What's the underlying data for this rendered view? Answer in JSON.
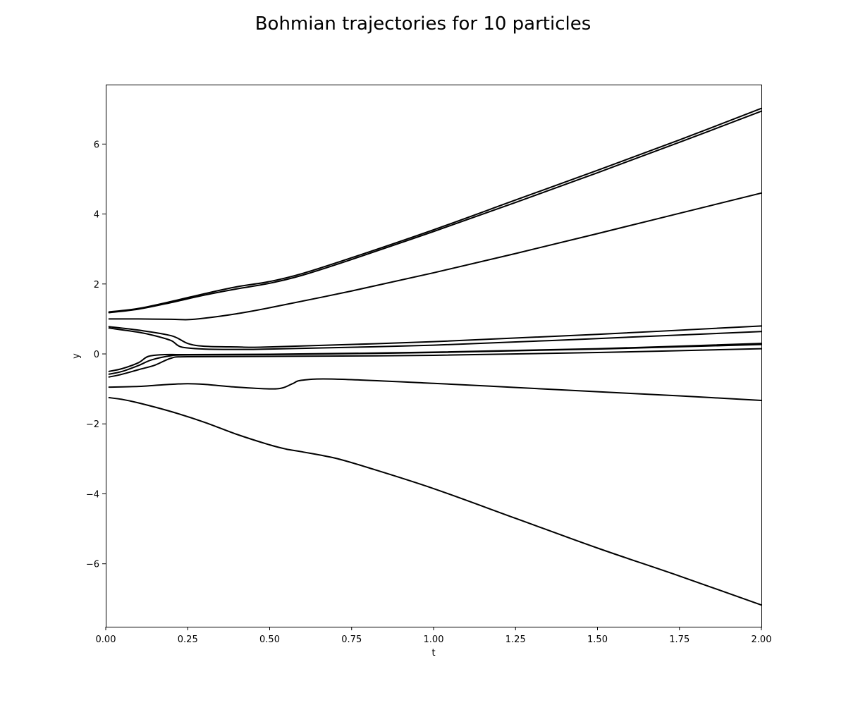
{
  "chart_data": {
    "type": "line",
    "title": "Bohmian trajectories for 10 particles",
    "xlabel": "t",
    "ylabel": "y",
    "xlim": [
      0,
      2
    ],
    "ylim": [
      -7.8,
      7.7
    ],
    "xticks": [
      0.0,
      0.25,
      0.5,
      0.75,
      1.0,
      1.25,
      1.5,
      1.75,
      2.0
    ],
    "xtick_labels": [
      "0.00",
      "0.25",
      "0.50",
      "0.75",
      "1.00",
      "1.25",
      "1.50",
      "1.75",
      "2.00"
    ],
    "yticks": [
      -6,
      -4,
      -2,
      0,
      2,
      4,
      6
    ],
    "ytick_labels": [
      "−6",
      "−4",
      "−2",
      "0",
      "2",
      "4",
      "6"
    ],
    "grid": false,
    "line_color": "#000000",
    "series": [
      {
        "x": [
          0.01,
          0.1,
          0.2,
          0.3,
          0.4,
          0.5,
          0.6,
          0.75,
          1.0,
          1.25,
          1.5,
          1.75,
          2.0
        ],
        "y": [
          1.2,
          1.3,
          1.5,
          1.72,
          1.92,
          2.07,
          2.3,
          2.75,
          3.55,
          4.4,
          5.25,
          6.12,
          7.02
        ]
      },
      {
        "x": [
          0.01,
          0.1,
          0.2,
          0.3,
          0.4,
          0.5,
          0.6,
          0.75,
          1.0,
          1.25,
          1.5,
          1.75,
          2.0
        ],
        "y": [
          1.18,
          1.28,
          1.47,
          1.68,
          1.86,
          2.02,
          2.25,
          2.7,
          3.5,
          4.33,
          5.18,
          6.05,
          6.94
        ]
      },
      {
        "x": [
          0.01,
          0.1,
          0.2,
          0.25,
          0.3,
          0.4,
          0.5,
          0.75,
          1.0,
          1.25,
          1.5,
          1.75,
          2.0
        ],
        "y": [
          1.0,
          1.0,
          0.99,
          0.98,
          1.02,
          1.15,
          1.32,
          1.8,
          2.32,
          2.87,
          3.44,
          4.02,
          4.6
        ]
      },
      {
        "x": [
          0.01,
          0.1,
          0.2,
          0.25,
          0.3,
          0.4,
          0.5,
          1.0,
          1.5,
          2.0
        ],
        "y": [
          0.78,
          0.68,
          0.52,
          0.3,
          0.22,
          0.2,
          0.2,
          0.35,
          0.56,
          0.8
        ]
      },
      {
        "x": [
          0.01,
          0.1,
          0.15,
          0.2,
          0.23,
          0.3,
          0.4,
          0.5,
          1.0,
          1.5,
          2.0
        ],
        "y": [
          0.74,
          0.62,
          0.52,
          0.38,
          0.2,
          0.14,
          0.13,
          0.14,
          0.25,
          0.44,
          0.64
        ]
      },
      {
        "x": [
          0.01,
          0.05,
          0.1,
          0.13,
          0.18,
          0.25,
          0.5,
          1.0,
          1.5,
          2.0
        ],
        "y": [
          -0.5,
          -0.42,
          -0.25,
          -0.07,
          -0.02,
          -0.02,
          -0.01,
          0.05,
          0.15,
          0.3
        ]
      },
      {
        "x": [
          0.01,
          0.05,
          0.1,
          0.14,
          0.2,
          0.25,
          0.5,
          1.0,
          1.5,
          2.0
        ],
        "y": [
          -0.58,
          -0.5,
          -0.33,
          -0.17,
          -0.05,
          -0.03,
          -0.02,
          0.04,
          0.14,
          0.27
        ]
      },
      {
        "x": [
          0.01,
          0.05,
          0.1,
          0.15,
          0.2,
          0.25,
          0.5,
          1.0,
          1.5,
          2.0
        ],
        "y": [
          -0.66,
          -0.58,
          -0.45,
          -0.32,
          -0.12,
          -0.08,
          -0.07,
          -0.04,
          0.04,
          0.15
        ]
      },
      {
        "x": [
          0.01,
          0.1,
          0.15,
          0.2,
          0.25,
          0.3,
          0.4,
          0.5,
          0.54,
          0.57,
          0.6,
          0.7,
          1.0,
          1.25,
          1.5,
          1.75,
          2.0
        ],
        "y": [
          -0.95,
          -0.93,
          -0.9,
          -0.87,
          -0.85,
          -0.87,
          -0.95,
          -1.0,
          -0.97,
          -0.85,
          -0.75,
          -0.72,
          -0.84,
          -0.96,
          -1.08,
          -1.2,
          -1.33
        ]
      },
      {
        "x": [
          0.01,
          0.05,
          0.1,
          0.2,
          0.3,
          0.4,
          0.5,
          0.55,
          0.6,
          0.7,
          0.8,
          1.0,
          1.25,
          1.5,
          1.75,
          2.0
        ],
        "y": [
          -1.25,
          -1.3,
          -1.4,
          -1.65,
          -1.95,
          -2.3,
          -2.6,
          -2.72,
          -2.8,
          -2.98,
          -3.25,
          -3.85,
          -4.7,
          -5.55,
          -6.35,
          -7.18
        ]
      }
    ]
  }
}
